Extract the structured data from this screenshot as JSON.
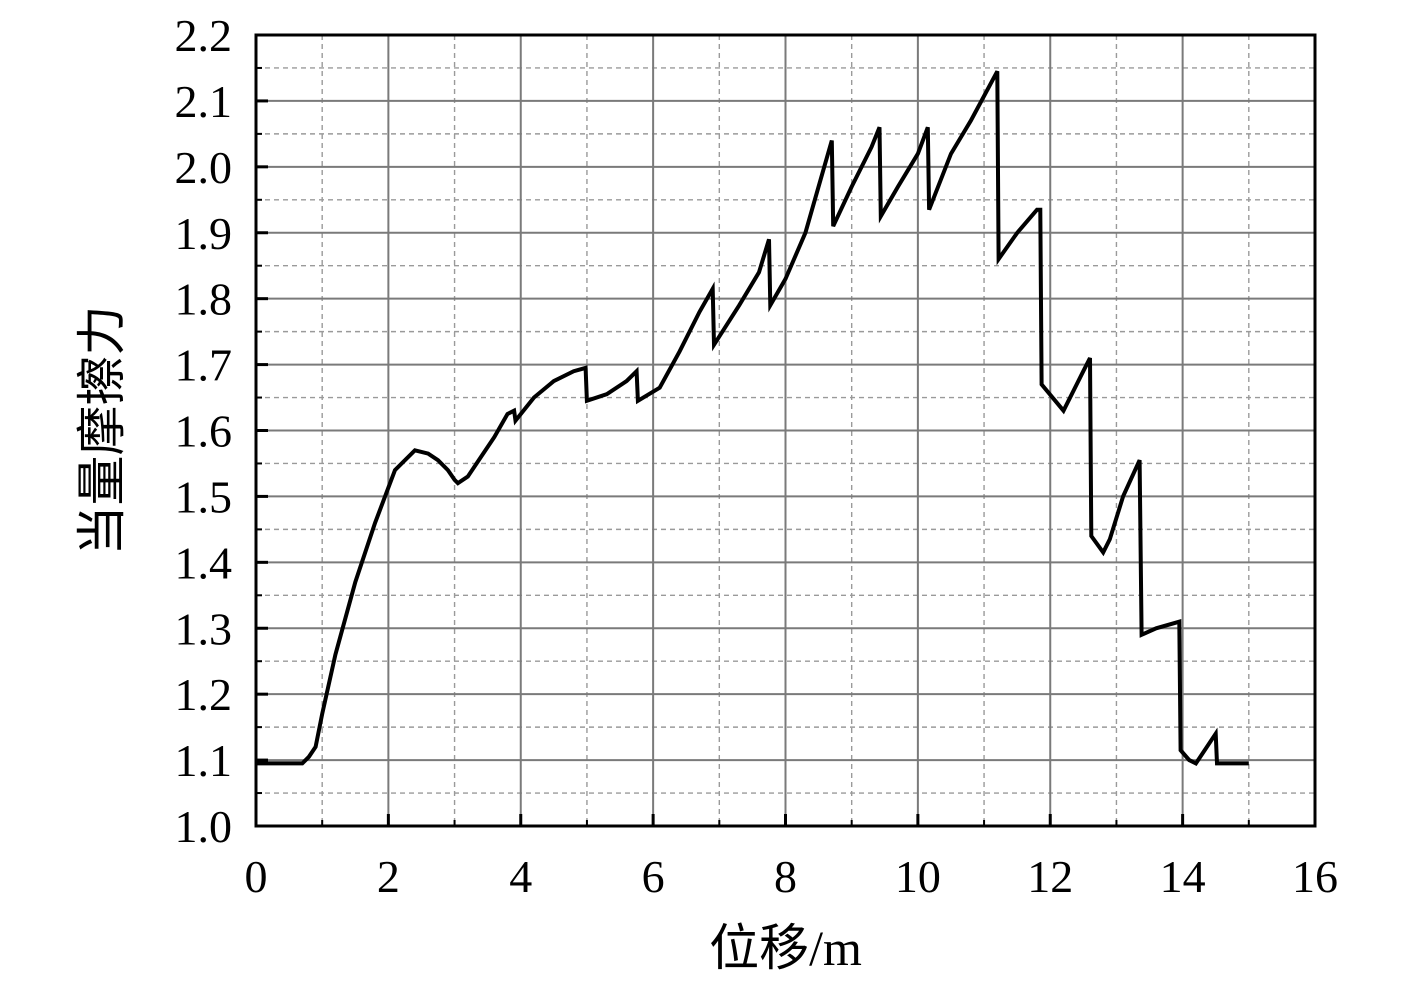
{
  "chart_data": {
    "type": "line",
    "title": "",
    "xlabel": "位移/m",
    "ylabel": "当量摩擦力",
    "xlim": [
      0,
      16
    ],
    "ylim": [
      1.0,
      2.2
    ],
    "x_ticks": [
      0,
      2,
      4,
      6,
      8,
      10,
      12,
      14,
      16
    ],
    "x_tick_labels": [
      "0",
      "2",
      "4",
      "6",
      "8",
      "10",
      "12",
      "14",
      "16"
    ],
    "y_ticks": [
      1.0,
      1.1,
      1.2,
      1.3,
      1.4,
      1.5,
      1.6,
      1.7,
      1.8,
      1.9,
      2.0,
      2.1,
      2.2
    ],
    "y_tick_labels": [
      "1.0",
      "1.1",
      "1.2",
      "1.3",
      "1.4",
      "1.5",
      "1.6",
      "1.7",
      "1.8",
      "1.9",
      "2.0",
      "2.1",
      "2.2"
    ],
    "grid": true,
    "minor_grid": true,
    "legend": "none",
    "line_color": "#000000",
    "series": [
      {
        "x": [
          0,
          0.7,
          0.8,
          0.9,
          1.0,
          1.2,
          1.5,
          1.8,
          2.1,
          2.4,
          2.6,
          2.75,
          2.9,
          3.0,
          3.05,
          3.2,
          3.4,
          3.6,
          3.8,
          3.9,
          3.92,
          4.2,
          4.5,
          4.8,
          4.98,
          5.0,
          5.3,
          5.6,
          5.75,
          5.77,
          6.1,
          6.4,
          6.7,
          6.9,
          6.92,
          7.3,
          7.6,
          7.75,
          7.77,
          8.0,
          8.3,
          8.5,
          8.7,
          8.72,
          9.0,
          9.3,
          9.42,
          9.44,
          9.7,
          10.0,
          10.15,
          10.17,
          10.5,
          10.8,
          11.2,
          11.22,
          11.5,
          11.8,
          11.85,
          11.87,
          12.2,
          12.5,
          12.6,
          12.62,
          12.8,
          12.9,
          13.1,
          13.35,
          13.38,
          13.6,
          13.95,
          13.97,
          14.1,
          14.2,
          14.3,
          14.5,
          14.52,
          15.0
        ],
        "y": [
          1.095,
          1.095,
          1.105,
          1.12,
          1.17,
          1.26,
          1.37,
          1.46,
          1.54,
          1.57,
          1.565,
          1.555,
          1.54,
          1.525,
          1.52,
          1.53,
          1.56,
          1.59,
          1.625,
          1.63,
          1.615,
          1.65,
          1.675,
          1.69,
          1.695,
          1.645,
          1.655,
          1.675,
          1.69,
          1.645,
          1.665,
          1.72,
          1.78,
          1.815,
          1.73,
          1.79,
          1.84,
          1.89,
          1.79,
          1.83,
          1.9,
          1.97,
          2.04,
          1.91,
          1.97,
          2.03,
          2.06,
          1.925,
          1.97,
          2.02,
          2.06,
          1.935,
          2.02,
          2.07,
          2.145,
          1.86,
          1.9,
          1.935,
          1.935,
          1.67,
          1.63,
          1.69,
          1.71,
          1.44,
          1.415,
          1.435,
          1.5,
          1.555,
          1.29,
          1.3,
          1.31,
          1.115,
          1.1,
          1.095,
          1.11,
          1.14,
          1.095,
          1.095
        ]
      }
    ]
  }
}
